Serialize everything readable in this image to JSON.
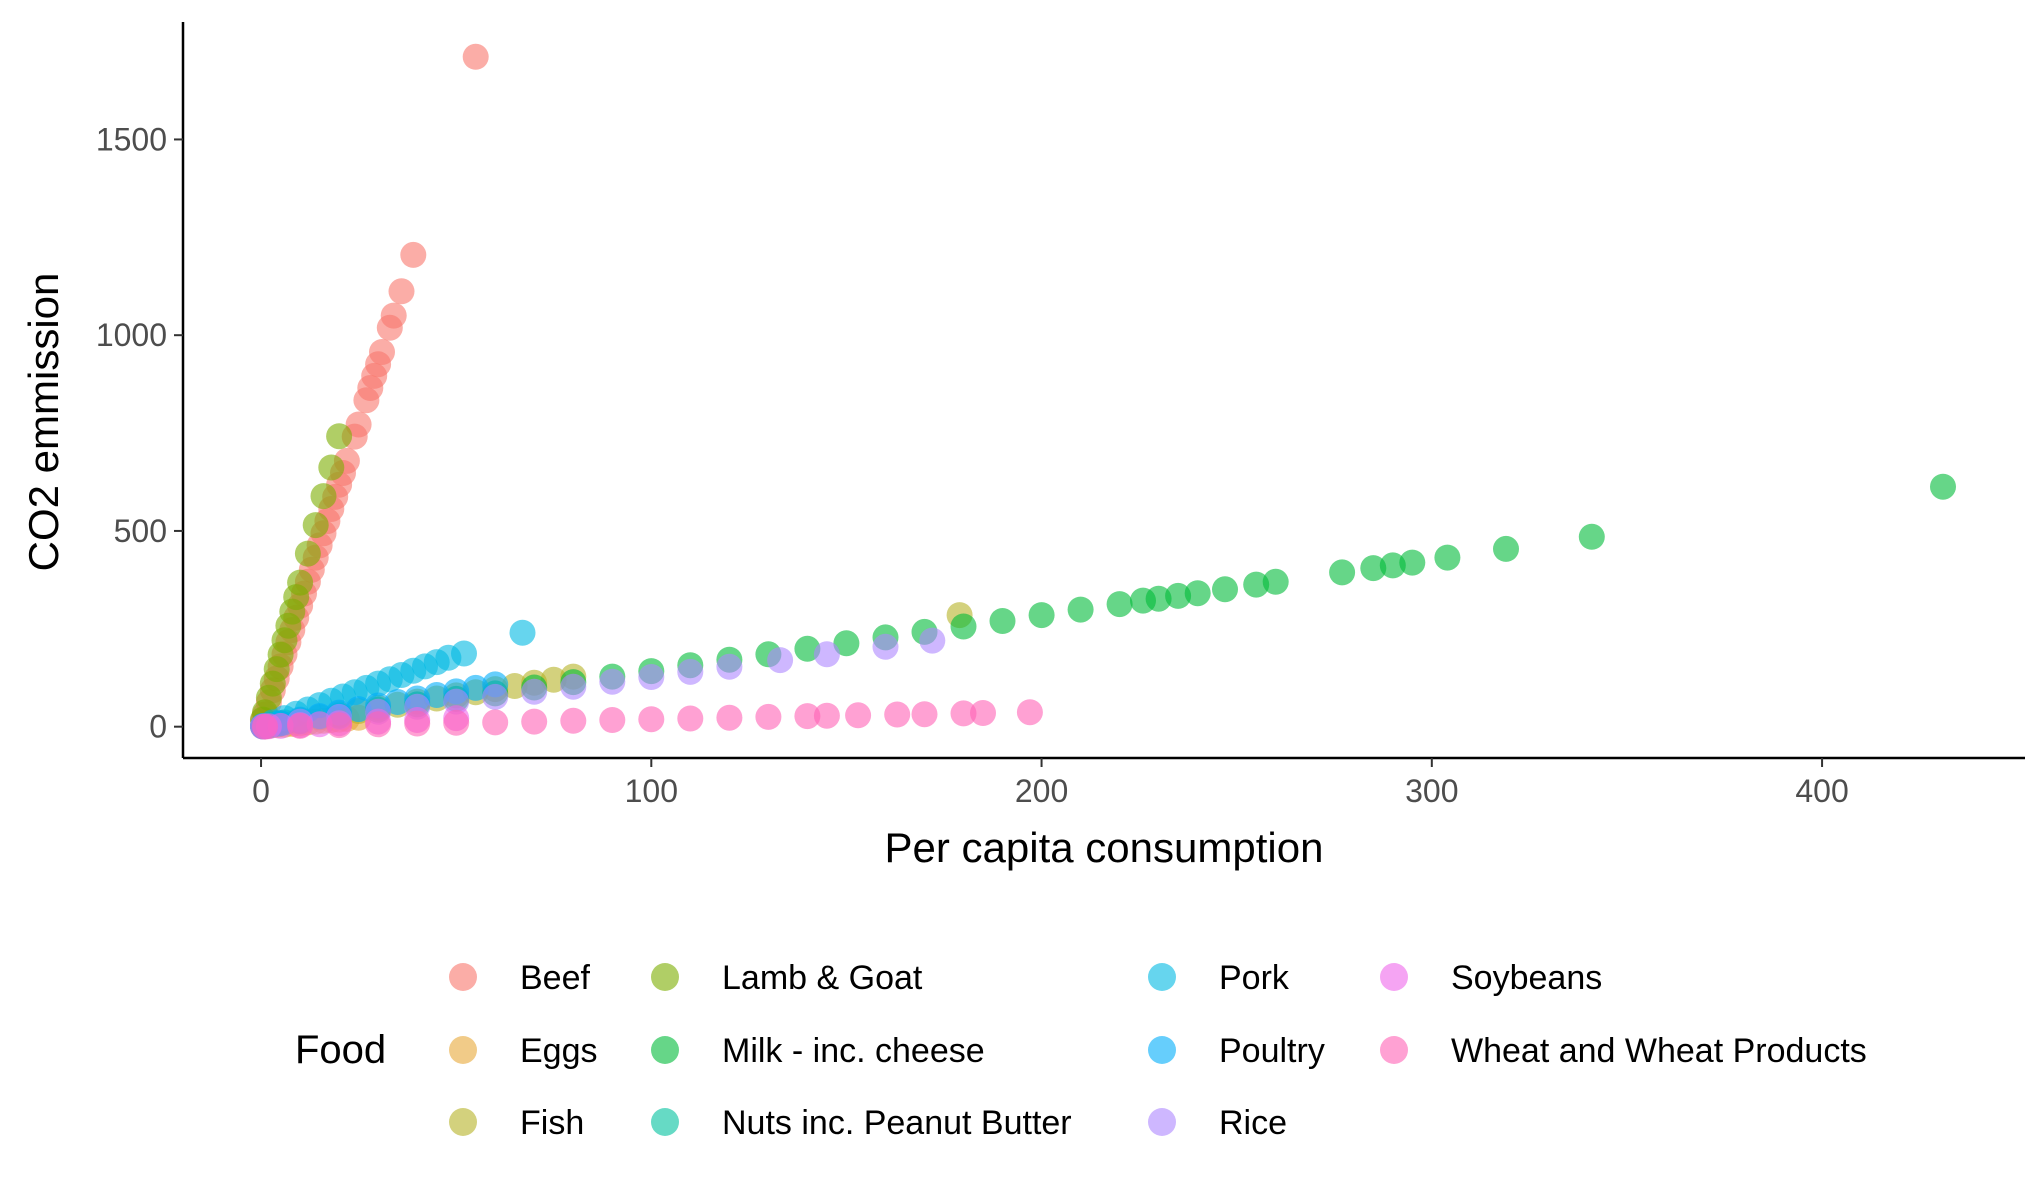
{
  "chart_data": {
    "type": "scatter",
    "title": "",
    "xlabel": "Per capita consumption",
    "ylabel": "CO2 emmission",
    "xlim": [
      -20,
      452
    ],
    "ylim": [
      -80,
      1800
    ],
    "x_ticks": [
      0,
      100,
      200,
      300,
      400
    ],
    "y_ticks": [
      0,
      500,
      1000,
      1500
    ],
    "x_tick_labels": [
      "0",
      "100",
      "200",
      "300",
      "400"
    ],
    "y_tick_labels": [
      "0",
      "500",
      "1000",
      "1500"
    ],
    "grid": false,
    "legend_title": "Food",
    "legend_position": "bottom",
    "marker_opacity": 0.6,
    "series": [
      {
        "name": "Beef",
        "color": "#F8766D",
        "x": [
          0.5,
          1,
          2,
          3,
          4,
          5,
          6,
          7,
          8,
          9,
          10,
          11,
          12,
          13,
          14,
          15,
          16,
          17,
          18,
          19,
          20,
          21,
          22,
          24,
          25,
          27,
          28,
          29,
          30,
          31,
          33,
          34,
          36,
          39,
          55
        ],
        "y": [
          15,
          31,
          62,
          93,
          123,
          154,
          185,
          216,
          247,
          278,
          309,
          340,
          370,
          401,
          432,
          463,
          494,
          525,
          556,
          587,
          618,
          648,
          679,
          741,
          772,
          834,
          865,
          896,
          926,
          957,
          1019,
          1050,
          1112,
          1205,
          1711
        ]
      },
      {
        "name": "Eggs",
        "color": "#E7A938",
        "x": [
          0.5,
          2,
          4,
          6,
          8,
          10,
          12,
          14,
          16,
          18,
          20,
          22,
          25
        ],
        "y": [
          0.5,
          2,
          4,
          5,
          7,
          9,
          11,
          13,
          15,
          17,
          18,
          20,
          23
        ]
      },
      {
        "name": "Fish",
        "color": "#B5B327",
        "x": [
          1,
          5,
          10,
          15,
          20,
          25,
          30,
          35,
          40,
          45,
          50,
          55,
          60,
          65,
          70,
          75,
          80,
          179
        ],
        "y": [
          2,
          8,
          16,
          24,
          32,
          40,
          48,
          56,
          64,
          72,
          80,
          88,
          96,
          104,
          112,
          120,
          128,
          285
        ]
      },
      {
        "name": "Lamb & Goat",
        "color": "#7CAE00",
        "x": [
          0.5,
          1,
          2,
          3,
          4,
          5,
          6,
          7,
          8,
          9,
          10,
          12,
          14,
          16,
          18,
          20
        ],
        "y": [
          18,
          37,
          74,
          110,
          147,
          184,
          221,
          258,
          294,
          331,
          368,
          442,
          515,
          589,
          662,
          742
        ]
      },
      {
        "name": "Milk - inc. cheese",
        "color": "#00BA38",
        "x": [
          1,
          10,
          20,
          30,
          40,
          50,
          60,
          70,
          80,
          90,
          100,
          110,
          120,
          130,
          140,
          150,
          160,
          170,
          180,
          190,
          200,
          210,
          220,
          226,
          230,
          235,
          240,
          247,
          255,
          260,
          277,
          285,
          290,
          295,
          304,
          319,
          341,
          431
        ],
        "y": [
          1,
          14,
          28,
          43,
          57,
          71,
          85,
          100,
          114,
          128,
          142,
          157,
          171,
          185,
          199,
          213,
          228,
          242,
          256,
          270,
          285,
          299,
          313,
          322,
          327,
          334,
          341,
          351,
          363,
          370,
          394,
          405,
          412,
          419,
          432,
          454,
          485,
          613
        ]
      },
      {
        "name": "Nuts inc. Peanut Butter",
        "color": "#00C19F",
        "x": [
          0.5,
          1,
          2,
          3,
          4,
          5,
          6
        ],
        "y": [
          1,
          2,
          4,
          5,
          7,
          9,
          11
        ]
      },
      {
        "name": "Pork",
        "color": "#00B9E3",
        "x": [
          0.5,
          3,
          6,
          9,
          12,
          15,
          18,
          21,
          24,
          27,
          30,
          33,
          36,
          39,
          42,
          45,
          48,
          52,
          67
        ],
        "y": [
          2,
          11,
          22,
          33,
          44,
          55,
          66,
          77,
          88,
          99,
          110,
          121,
          132,
          143,
          154,
          165,
          176,
          187,
          240
        ]
      },
      {
        "name": "Poultry",
        "color": "#00ADFA",
        "x": [
          0.5,
          5,
          10,
          15,
          20,
          25,
          30,
          35,
          40,
          45,
          50,
          55,
          60
        ],
        "y": [
          0.5,
          9,
          18,
          27,
          36,
          45,
          54,
          63,
          72,
          81,
          90,
          99,
          108
        ]
      },
      {
        "name": "Rice",
        "color": "#AE87FF",
        "x": [
          1,
          10,
          20,
          30,
          40,
          50,
          60,
          70,
          80,
          90,
          100,
          110,
          120,
          133,
          145,
          160,
          172
        ],
        "y": [
          1,
          13,
          25,
          38,
          51,
          64,
          76,
          89,
          102,
          115,
          127,
          140,
          153,
          170,
          185,
          204,
          220
        ]
      },
      {
        "name": "Soybeans",
        "color": "#EF67EB",
        "x": [
          0.5,
          2,
          5,
          10,
          15,
          20,
          30,
          40,
          50
        ],
        "y": [
          0.5,
          1,
          2,
          4,
          6,
          9,
          13,
          17,
          22
        ]
      },
      {
        "name": "Wheat and Wheat Products",
        "color": "#FF63B6",
        "x": [
          1,
          10,
          20,
          30,
          40,
          50,
          60,
          70,
          80,
          90,
          100,
          110,
          120,
          130,
          140,
          145,
          153,
          163,
          170,
          180,
          185,
          197
        ],
        "y": [
          0.2,
          2,
          4,
          6,
          8,
          10,
          11,
          13,
          15,
          17,
          19,
          21,
          23,
          25,
          27,
          28,
          29,
          31,
          32,
          34,
          35,
          37
        ]
      }
    ]
  }
}
